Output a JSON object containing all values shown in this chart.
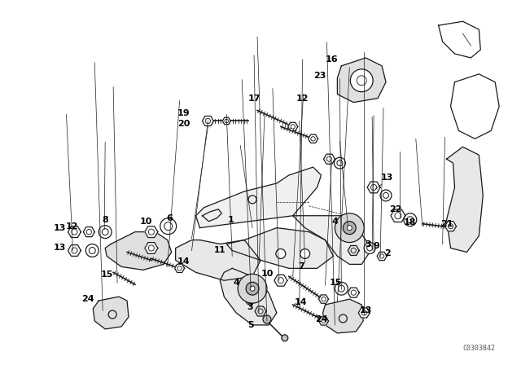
{
  "bg_color": "#ffffff",
  "line_color": "#1a1a1a",
  "fig_width": 6.4,
  "fig_height": 4.48,
  "dpi": 100,
  "watermark": "C0303842"
}
